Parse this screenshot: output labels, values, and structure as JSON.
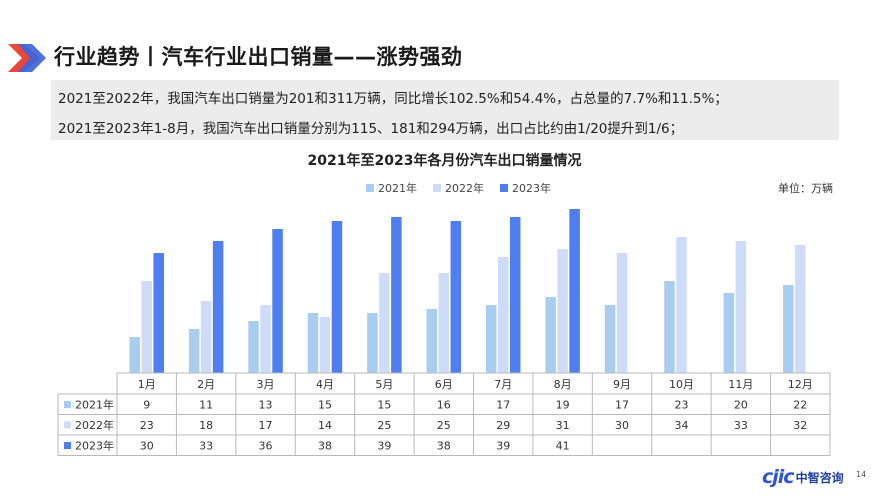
{
  "header": {
    "title": "行业趋势丨汽车行业出口销量——涨势强劲"
  },
  "summary": {
    "line1": "2021至2022年，我国汽车出口销量为201和311万辆，同比增长102.5%和54.4%，占总量的7.7%和11.5%；",
    "line2": "2021至2023年1-8月，我国汽车出口销量分别为115、181和294万辆，出口占比约由1/20提升到1/6；"
  },
  "unit_label": "单位：万辆",
  "footer": {
    "brand_mark": "cjic",
    "brand_name": "中智咨询",
    "page_number": "14"
  },
  "colors": {
    "s2021": "#a9cdf0",
    "s2022": "#cfdcf9",
    "s2023": "#4e7ef0",
    "grid": "#b9b9b9",
    "logo_red": "#e8473a",
    "logo_blue": "#3d66de"
  },
  "chart_data": {
    "type": "bar",
    "title": "2021年至2023年各月份汽车出口销量情况",
    "categories": [
      "1月",
      "2月",
      "3月",
      "4月",
      "5月",
      "6月",
      "7月",
      "8月",
      "9月",
      "10月",
      "11月",
      "12月"
    ],
    "series": [
      {
        "name": "2021年",
        "values": [
          9,
          11,
          13,
          15,
          15,
          16,
          17,
          19,
          17,
          23,
          20,
          22
        ]
      },
      {
        "name": "2022年",
        "values": [
          23,
          18,
          17,
          14,
          25,
          25,
          29,
          31,
          30,
          34,
          33,
          32
        ]
      },
      {
        "name": "2023年",
        "values": [
          30,
          33,
          36,
          38,
          39,
          38,
          39,
          41,
          null,
          null,
          null,
          null
        ]
      }
    ],
    "ylim": [
      0,
      45
    ],
    "legend": "top-center",
    "grid": false,
    "data_table": true
  }
}
